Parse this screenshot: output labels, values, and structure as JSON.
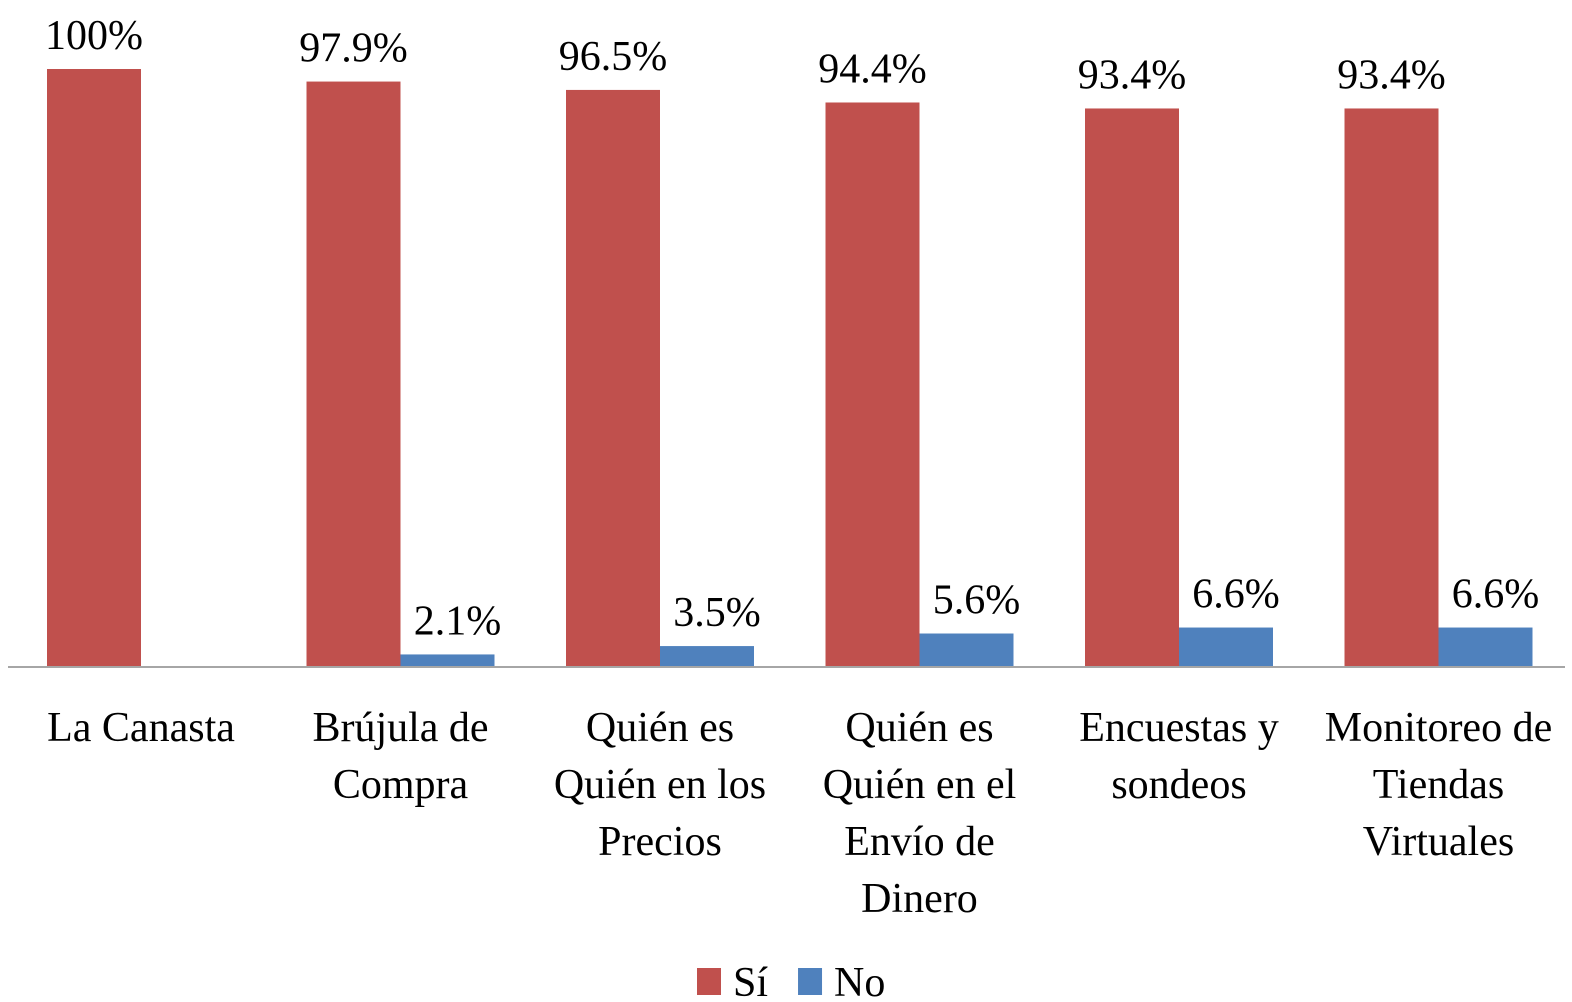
{
  "chart_data": {
    "type": "bar",
    "categories": [
      "La Canasta",
      "Brújula de Compra",
      "Quién es Quién en los Precios",
      "Quién es Quién en el Envío de Dinero",
      "Encuestas y sondeos",
      "Monitoreo de Tiendas Virtuales"
    ],
    "series": [
      {
        "name": "Sí",
        "color": "#c0504d",
        "values": [
          100,
          97.9,
          96.5,
          94.4,
          93.4,
          93.4
        ],
        "value_labels": [
          "100%",
          "97.9%",
          "96.5%",
          "94.4%",
          "93.4%",
          "93.4%"
        ]
      },
      {
        "name": "No",
        "color": "#4f81bd",
        "values": [
          null,
          2.1,
          3.5,
          5.6,
          6.6,
          6.6
        ],
        "value_labels": [
          null,
          "2.1%",
          "3.5%",
          "5.6%",
          "6.6%",
          "6.6%"
        ]
      }
    ],
    "ylim": [
      0,
      100
    ],
    "legend": "bottom"
  }
}
